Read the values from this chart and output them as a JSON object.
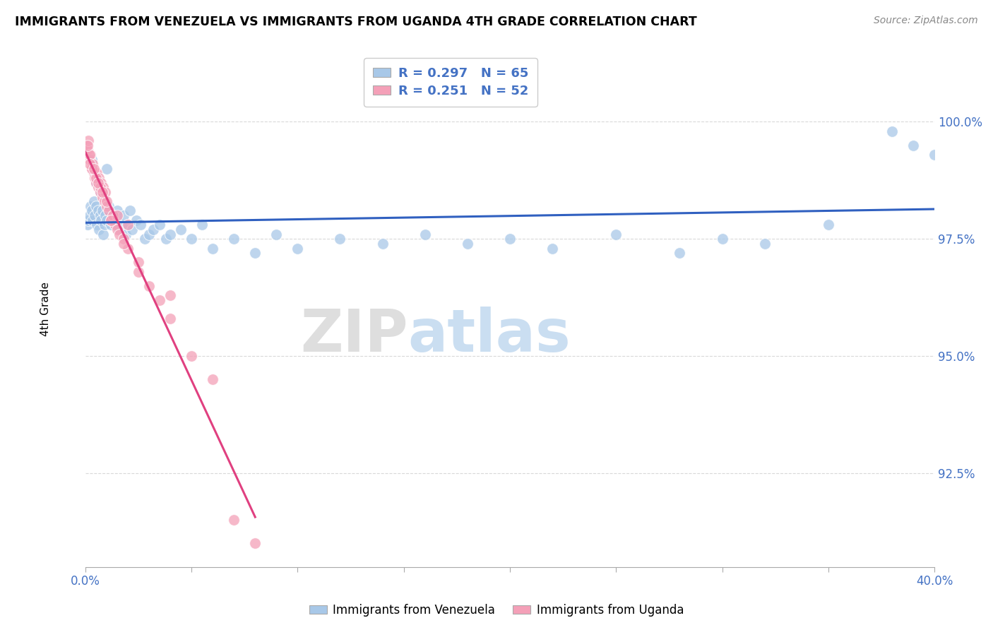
{
  "title": "IMMIGRANTS FROM VENEZUELA VS IMMIGRANTS FROM UGANDA 4TH GRADE CORRELATION CHART",
  "source": "Source: ZipAtlas.com",
  "ylabel": "4th Grade",
  "ytick_labels": [
    "92.5%",
    "95.0%",
    "97.5%",
    "100.0%"
  ],
  "ytick_values": [
    92.5,
    95.0,
    97.5,
    100.0
  ],
  "legend1_text": "R = 0.297   N = 65",
  "legend2_text": "R = 0.251   N = 52",
  "legend_label1": "Immigrants from Venezuela",
  "legend_label2": "Immigrants from Uganda",
  "blue_color": "#a8c8e8",
  "pink_color": "#f4a0b8",
  "line_blue": "#3060c0",
  "line_pink": "#e04080",
  "xlim": [
    0.0,
    40.0
  ],
  "ylim": [
    90.5,
    101.5
  ],
  "blue_x": [
    0.1,
    0.15,
    0.2,
    0.25,
    0.3,
    0.35,
    0.4,
    0.45,
    0.5,
    0.55,
    0.6,
    0.65,
    0.7,
    0.75,
    0.8,
    0.85,
    0.9,
    0.95,
    1.0,
    1.1,
    1.2,
    1.3,
    1.4,
    1.5,
    1.6,
    1.7,
    1.8,
    1.9,
    2.0,
    2.1,
    2.2,
    2.4,
    2.6,
    2.8,
    3.0,
    3.2,
    3.5,
    3.8,
    4.0,
    4.5,
    5.0,
    5.5,
    6.0,
    7.0,
    8.0,
    9.0,
    10.0,
    12.0,
    14.0,
    16.0,
    18.0,
    20.0,
    22.0,
    25.0,
    28.0,
    30.0,
    32.0,
    35.0,
    38.0,
    39.0,
    40.0,
    0.3,
    0.5,
    0.7,
    1.0
  ],
  "blue_y": [
    97.8,
    97.9,
    98.0,
    98.2,
    98.1,
    97.9,
    98.3,
    98.0,
    98.2,
    97.8,
    98.1,
    97.7,
    98.0,
    97.9,
    98.1,
    97.6,
    97.8,
    98.0,
    97.9,
    98.2,
    97.8,
    97.9,
    98.0,
    98.1,
    97.7,
    97.8,
    98.0,
    97.6,
    97.8,
    98.1,
    97.7,
    97.9,
    97.8,
    97.5,
    97.6,
    97.7,
    97.8,
    97.5,
    97.6,
    97.7,
    97.5,
    97.8,
    97.3,
    97.5,
    97.2,
    97.6,
    97.3,
    97.5,
    97.4,
    97.6,
    97.4,
    97.5,
    97.3,
    97.6,
    97.2,
    97.5,
    97.4,
    97.8,
    99.8,
    99.5,
    99.3,
    99.2,
    98.7,
    98.5,
    99.0
  ],
  "pink_x": [
    0.05,
    0.1,
    0.15,
    0.2,
    0.25,
    0.3,
    0.35,
    0.4,
    0.45,
    0.5,
    0.55,
    0.6,
    0.65,
    0.7,
    0.75,
    0.8,
    0.85,
    0.9,
    0.95,
    1.0,
    1.1,
    1.2,
    1.3,
    1.4,
    1.5,
    1.6,
    1.8,
    2.0,
    2.5,
    3.0,
    3.5,
    4.0,
    5.0,
    6.0,
    7.0,
    8.0,
    0.2,
    0.3,
    0.5,
    0.7,
    1.0,
    1.5,
    2.0,
    0.1,
    0.2,
    0.4,
    0.6,
    0.8,
    1.2,
    1.8,
    2.5,
    4.0
  ],
  "pink_y": [
    99.5,
    99.4,
    99.6,
    99.2,
    99.3,
    99.0,
    99.1,
    98.9,
    98.8,
    98.7,
    98.9,
    98.6,
    98.8,
    98.5,
    98.7,
    98.4,
    98.6,
    98.3,
    98.5,
    98.2,
    98.1,
    97.9,
    98.0,
    97.8,
    97.7,
    97.6,
    97.5,
    97.3,
    96.8,
    96.5,
    96.2,
    95.8,
    95.0,
    94.5,
    91.5,
    91.0,
    99.3,
    99.0,
    98.8,
    98.6,
    98.3,
    98.0,
    97.8,
    99.5,
    99.1,
    99.0,
    98.7,
    98.5,
    97.9,
    97.4,
    97.0,
    96.3
  ]
}
